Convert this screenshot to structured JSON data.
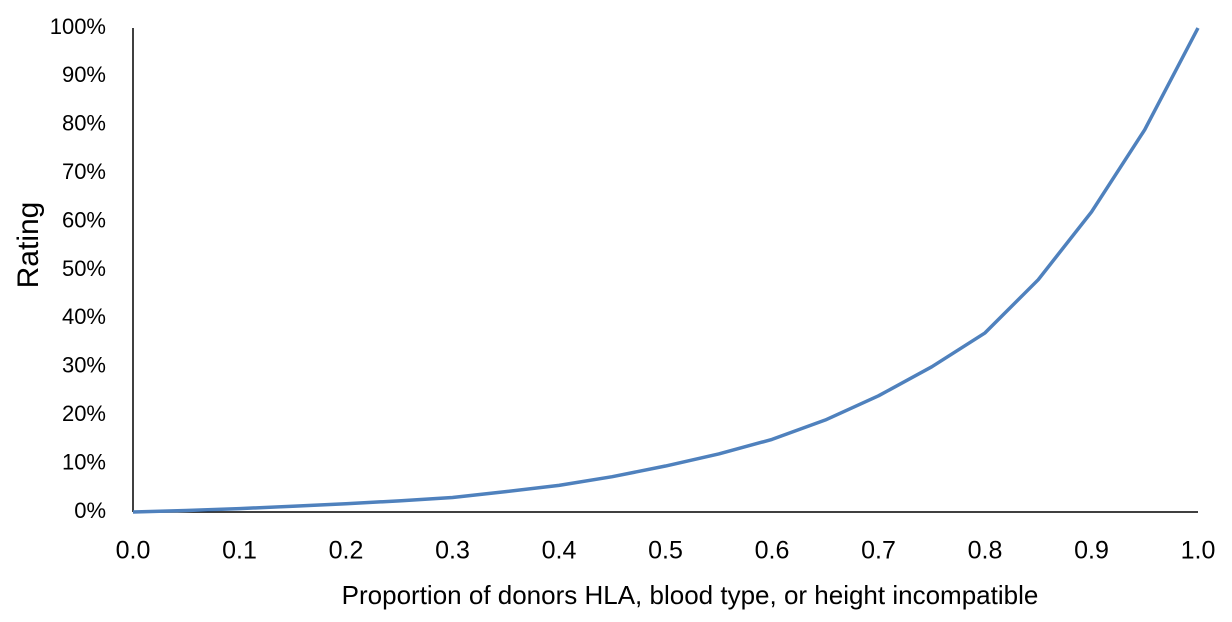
{
  "chart_data": {
    "type": "line",
    "x_label": "Proportion of donors HLA, blood type, or height incompatible",
    "y_label": "Rating",
    "x": [
      0,
      0.05,
      0.1,
      0.15,
      0.2,
      0.25,
      0.3,
      0.35,
      0.4,
      0.45,
      0.5,
      0.55,
      0.6,
      0.65,
      0.7,
      0.75,
      0.8,
      0.85,
      0.9,
      0.95,
      1
    ],
    "series": [
      {
        "color": "#4f81bd",
        "values": [
          0,
          0.3,
          0.7,
          1.2,
          1.7,
          2.3,
          3,
          4.2,
          5.5,
          7.3,
          9.5,
          12,
          15,
          19,
          24,
          30,
          37,
          48,
          62,
          79,
          100
        ]
      }
    ],
    "xlim": [
      0,
      1
    ],
    "xticks": [
      {
        "value": 0,
        "label": "0.0"
      },
      0.1,
      0.2,
      0.3,
      0.4,
      0.5,
      0.6,
      0.7,
      0.8,
      0.9,
      {
        "value": 1,
        "label": "1.0"
      }
    ],
    "ylim": [
      0,
      100
    ],
    "yticks": [
      {
        "value": 0,
        "label": "0%"
      },
      {
        "value": 10,
        "label": "10%"
      },
      {
        "value": 20,
        "label": "20%"
      },
      {
        "value": 30,
        "label": "30%"
      },
      {
        "value": 40,
        "label": "40%"
      },
      {
        "value": 50,
        "label": "50%"
      },
      {
        "value": 60,
        "label": "60%"
      },
      {
        "value": 70,
        "label": "70%"
      },
      {
        "value": 80,
        "label": "80%"
      },
      {
        "value": 90,
        "label": "90%"
      },
      {
        "value": 100,
        "label": "100%"
      }
    ],
    "grid": false
  }
}
